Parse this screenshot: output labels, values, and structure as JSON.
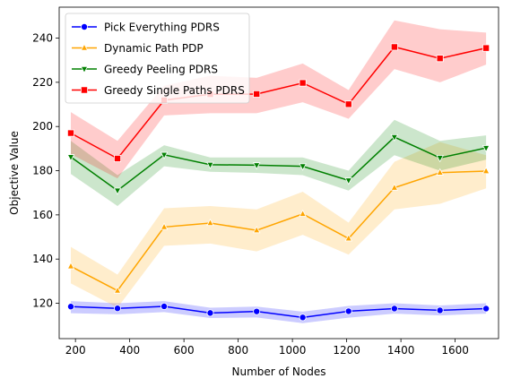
{
  "chart_data": {
    "type": "line",
    "title": "",
    "xlabel": "Number of Nodes",
    "ylabel": "Objective Value",
    "xlim": [
      140,
      1760
    ],
    "ylim": [
      104,
      254
    ],
    "xticks": [
      200,
      400,
      600,
      800,
      1000,
      1200,
      1400,
      1600
    ],
    "yticks": [
      120,
      140,
      160,
      180,
      200,
      220,
      240
    ],
    "grid": false,
    "legend_position": "upper-left",
    "x": [
      183,
      355,
      527,
      697,
      868,
      1038,
      1207,
      1376,
      1544,
      1714
    ],
    "series": [
      {
        "name": "Pick Everything PDRS",
        "color": "#0000ff",
        "marker": "circle",
        "values": [
          118.5,
          117.7,
          118.6,
          115.6,
          116.3,
          113.6,
          116.4,
          117.6,
          116.8,
          117.6
        ],
        "lower": [
          115.5,
          115.0,
          116.0,
          113.3,
          113.6,
          111.0,
          113.5,
          115.3,
          114.5,
          115.3
        ],
        "upper": [
          121.0,
          120.0,
          121.0,
          118.0,
          118.5,
          116.2,
          118.8,
          120.0,
          119.0,
          120.0
        ]
      },
      {
        "name": "Dynamic Path PDP",
        "color": "#ffa500",
        "marker": "triangle-up",
        "values": [
          136.7,
          125.7,
          154.5,
          156.3,
          153.0,
          160.4,
          149.3,
          172.3,
          179.1,
          179.8
        ],
        "lower": [
          129.0,
          118.0,
          146.0,
          147.0,
          143.5,
          151.0,
          142.0,
          162.5,
          165.0,
          172.0
        ],
        "upper": [
          145.5,
          133.0,
          163.0,
          164.0,
          162.5,
          170.5,
          156.5,
          184.0,
          193.0,
          187.0
        ]
      },
      {
        "name": "Greedy Peeling PDRS",
        "color": "#008000",
        "marker": "triangle-down",
        "values": [
          186.2,
          171.0,
          187.2,
          182.7,
          182.5,
          182.0,
          175.6,
          195.2,
          185.8,
          190.3
        ],
        "lower": [
          178.5,
          164.0,
          182.0,
          179.5,
          179.0,
          178.0,
          171.0,
          187.0,
          180.0,
          185.0
        ],
        "upper": [
          193.5,
          178.0,
          191.5,
          186.0,
          186.0,
          186.0,
          180.0,
          203.0,
          193.5,
          196.0
        ]
      },
      {
        "name": "Greedy Single Paths PDRS",
        "color": "#ff0000",
        "marker": "square",
        "values": [
          197.0,
          185.5,
          211.9,
          214.6,
          214.7,
          219.7,
          210.1,
          236.0,
          230.8,
          235.5
        ],
        "lower": [
          187.5,
          176.5,
          205.0,
          206.0,
          206.0,
          211.0,
          203.5,
          226.0,
          220.0,
          228.0
        ],
        "upper": [
          206.5,
          193.5,
          218.5,
          223.0,
          222.0,
          228.5,
          216.5,
          248.0,
          244.0,
          242.5
        ]
      }
    ]
  }
}
